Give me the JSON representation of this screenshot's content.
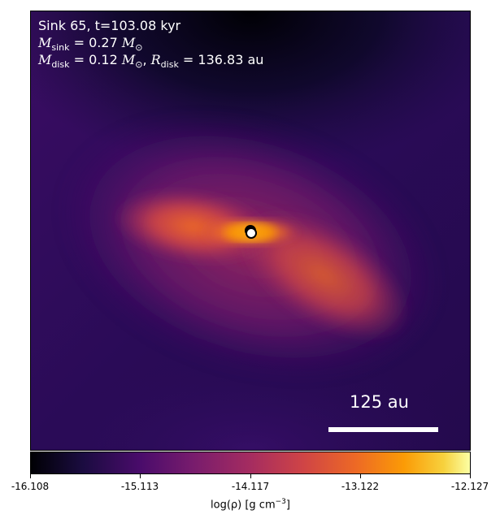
{
  "title_line": "Sink 65, t=103.08 kyr",
  "sink_mass": {
    "symbol": "M",
    "subscript": "sink",
    "value": "= 0.27",
    "unit": "M",
    "unit_sub": "⊙"
  },
  "disk": {
    "mass_symbol": "M",
    "mass_sub": "disk",
    "mass_value": "= 0.12",
    "mass_unit": "M",
    "mass_unit_sub": "⊙",
    "radius_symbol": "R",
    "radius_sub": "disk",
    "radius_value": "= 136.83 au"
  },
  "scale_bar_label": "125 au",
  "colorbar": {
    "ticks": [
      "-16.108",
      "-15.113",
      "-14.117",
      "-13.122",
      "-12.127"
    ],
    "label_prefix": "log(ρ) [g cm",
    "label_exp": "−3",
    "label_suffix": "]",
    "colormap": "inferno"
  }
}
